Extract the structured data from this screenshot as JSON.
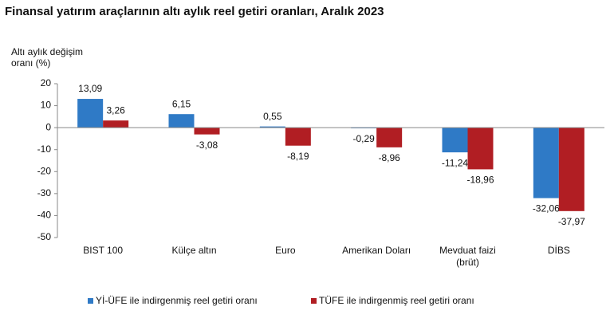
{
  "chart_data": {
    "type": "bar",
    "title": "Finansal yatırım araçlarının altı aylık reel getiri oranları, Aralık 2023",
    "y_label": "Altı aylık değişim oranı (%)",
    "categories": [
      "BIST 100",
      "Külçe altın",
      "Euro",
      "Amerikan Doları",
      "Mevduat faizi (brüt)",
      "DİBS"
    ],
    "series": [
      {
        "name": "Yİ-ÜFE ile indirgenmiş reel getiri oranı",
        "color": "#2f7ac6",
        "values": [
          13.09,
          6.15,
          0.55,
          -0.29,
          -11.24,
          -32.06
        ],
        "value_labels": [
          "13,09",
          "6,15",
          "0,55",
          "-0,29",
          "-11,24",
          "-32,06"
        ]
      },
      {
        "name": "TÜFE ile indirgenmiş reel getiri oranı",
        "color": "#b11e23",
        "values": [
          3.26,
          -3.08,
          -8.19,
          -8.96,
          -18.96,
          -37.97
        ],
        "value_labels": [
          "3,26",
          "-3,08",
          "-8,19",
          "-8,96",
          "-18,96",
          "-37,97"
        ]
      }
    ],
    "ylim": [
      -50,
      20
    ],
    "yticks": [
      20,
      10,
      0,
      -10,
      -20,
      -30,
      -40,
      -50
    ],
    "grid": false
  }
}
